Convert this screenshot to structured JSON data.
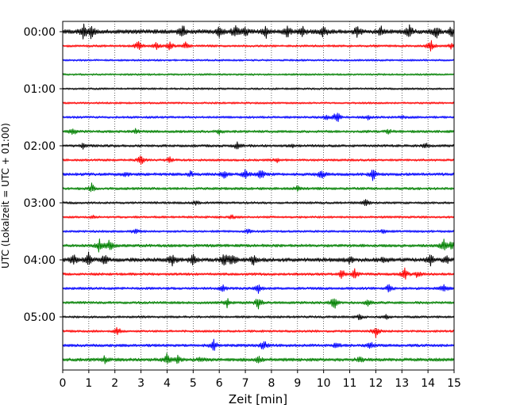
{
  "chart_data": {
    "type": "line",
    "subtype": "helicorder",
    "xlabel": "Zeit  [min]",
    "ylabel": "UTC (Lokalzeit = UTC + 01:00)",
    "xlim": [
      0,
      15
    ],
    "x_ticks": [
      0,
      1,
      2,
      3,
      4,
      5,
      6,
      7,
      8,
      9,
      10,
      11,
      12,
      13,
      14,
      15
    ],
    "x_tick_labels": [
      "0",
      "1",
      "2",
      "3",
      "4",
      "5",
      "6",
      "7",
      "8",
      "9",
      "10",
      "11",
      "12",
      "13",
      "14",
      "15"
    ],
    "y_tick_labels": [
      "00:00",
      "01:00",
      "02:00",
      "03:00",
      "04:00",
      "05:00"
    ],
    "y_tick_rows": [
      0,
      4,
      8,
      12,
      16,
      20
    ],
    "grid": "vertical dotted at each minute",
    "trace_colors": [
      "#000000",
      "#ff0000",
      "#0000ff",
      "#008000"
    ],
    "row_minutes": 15,
    "rows": [
      {
        "start": "00:00",
        "noise": 0.9,
        "events": [
          [
            0.8,
            1.0
          ],
          [
            1.1,
            0.9
          ],
          [
            4.6,
            1.0
          ],
          [
            6.0,
            0.8
          ],
          [
            6.6,
            0.9
          ],
          [
            7.0,
            0.6
          ],
          [
            7.8,
            0.8
          ],
          [
            8.6,
            0.9
          ],
          [
            9.2,
            0.7
          ],
          [
            10.0,
            0.8
          ],
          [
            11.3,
            0.9
          ],
          [
            12.2,
            0.6
          ],
          [
            13.3,
            1.0
          ],
          [
            14.3,
            1.0
          ],
          [
            14.9,
            0.8
          ]
        ]
      },
      {
        "start": "00:15",
        "noise": 0.3,
        "events": [
          [
            2.9,
            0.7
          ],
          [
            3.6,
            0.5
          ],
          [
            4.1,
            0.8
          ],
          [
            4.7,
            0.5
          ],
          [
            14.1,
            1.0
          ],
          [
            14.9,
            0.4
          ]
        ]
      },
      {
        "start": "00:30",
        "noise": 0.2,
        "events": []
      },
      {
        "start": "00:45",
        "noise": 0.2,
        "events": []
      },
      {
        "start": "01:00",
        "noise": 0.2,
        "events": []
      },
      {
        "start": "01:15",
        "noise": 0.2,
        "events": []
      },
      {
        "start": "01:30",
        "noise": 0.3,
        "events": [
          [
            10.5,
            1.0
          ],
          [
            10.1,
            0.4
          ],
          [
            11.7,
            0.3
          ],
          [
            13.0,
            0.3
          ]
        ]
      },
      {
        "start": "01:45",
        "noise": 0.4,
        "events": [
          [
            0.4,
            0.5
          ],
          [
            2.8,
            0.3
          ],
          [
            6.0,
            0.3
          ],
          [
            12.5,
            0.3
          ]
        ]
      },
      {
        "start": "02:00",
        "noise": 0.4,
        "events": [
          [
            0.8,
            0.4
          ],
          [
            6.7,
            0.6
          ],
          [
            8.8,
            0.3
          ],
          [
            13.9,
            0.4
          ]
        ]
      },
      {
        "start": "02:15",
        "noise": 0.3,
        "events": [
          [
            3.0,
            0.8
          ],
          [
            4.1,
            0.4
          ],
          [
            8.2,
            0.3
          ]
        ]
      },
      {
        "start": "02:30",
        "noise": 0.5,
        "events": [
          [
            2.4,
            0.4
          ],
          [
            4.9,
            0.4
          ],
          [
            6.2,
            0.7
          ],
          [
            7.0,
            0.7
          ],
          [
            7.6,
            0.8
          ],
          [
            9.9,
            0.9
          ],
          [
            11.9,
            0.9
          ]
        ]
      },
      {
        "start": "02:45",
        "noise": 0.4,
        "events": [
          [
            1.1,
            0.7
          ],
          [
            9.0,
            0.3
          ]
        ]
      },
      {
        "start": "03:00",
        "noise": 0.3,
        "events": [
          [
            11.6,
            0.6
          ],
          [
            5.1,
            0.3
          ]
        ]
      },
      {
        "start": "03:15",
        "noise": 0.3,
        "events": [
          [
            1.2,
            0.3
          ],
          [
            6.5,
            0.3
          ]
        ]
      },
      {
        "start": "03:30",
        "noise": 0.3,
        "events": [
          [
            2.8,
            0.5
          ],
          [
            7.1,
            0.3
          ],
          [
            12.3,
            0.3
          ]
        ]
      },
      {
        "start": "03:45",
        "noise": 0.5,
        "events": [
          [
            1.4,
            1.0
          ],
          [
            1.8,
            1.0
          ],
          [
            14.6,
            0.9
          ],
          [
            14.9,
            0.6
          ]
        ]
      },
      {
        "start": "04:00",
        "noise": 0.8,
        "events": [
          [
            0.4,
            0.8
          ],
          [
            1.0,
            1.0
          ],
          [
            1.6,
            0.7
          ],
          [
            4.2,
            1.0
          ],
          [
            5.0,
            0.8
          ],
          [
            6.2,
            1.0
          ],
          [
            6.5,
            0.8
          ],
          [
            7.3,
            0.6
          ],
          [
            11.0,
            0.5
          ],
          [
            12.3,
            0.5
          ],
          [
            14.1,
            0.8
          ],
          [
            14.7,
            0.6
          ]
        ]
      },
      {
        "start": "04:15",
        "noise": 0.4,
        "events": [
          [
            10.7,
            0.8
          ],
          [
            11.2,
            0.7
          ],
          [
            13.1,
            1.0
          ],
          [
            13.6,
            0.5
          ]
        ]
      },
      {
        "start": "04:30",
        "noise": 0.4,
        "events": [
          [
            6.1,
            0.6
          ],
          [
            7.5,
            0.6
          ],
          [
            12.5,
            0.6
          ],
          [
            14.6,
            0.6
          ]
        ]
      },
      {
        "start": "04:45",
        "noise": 0.4,
        "events": [
          [
            6.3,
            0.7
          ],
          [
            7.5,
            0.9
          ],
          [
            10.4,
            1.0
          ],
          [
            11.7,
            0.6
          ]
        ]
      },
      {
        "start": "05:00",
        "noise": 0.3,
        "events": [
          [
            11.4,
            0.5
          ],
          [
            12.4,
            0.3
          ]
        ]
      },
      {
        "start": "05:15",
        "noise": 0.3,
        "events": [
          [
            2.1,
            0.6
          ],
          [
            12.0,
            0.8
          ]
        ]
      },
      {
        "start": "05:30",
        "noise": 0.5,
        "events": [
          [
            5.8,
            0.8
          ],
          [
            7.7,
            1.0
          ],
          [
            10.5,
            0.4
          ],
          [
            11.8,
            0.5
          ]
        ]
      },
      {
        "start": "05:45",
        "noise": 0.6,
        "events": [
          [
            1.6,
            0.5
          ],
          [
            4.0,
            1.0
          ],
          [
            4.4,
            0.6
          ],
          [
            5.3,
            0.4
          ],
          [
            7.5,
            0.4
          ],
          [
            11.4,
            0.4
          ]
        ]
      }
    ]
  }
}
